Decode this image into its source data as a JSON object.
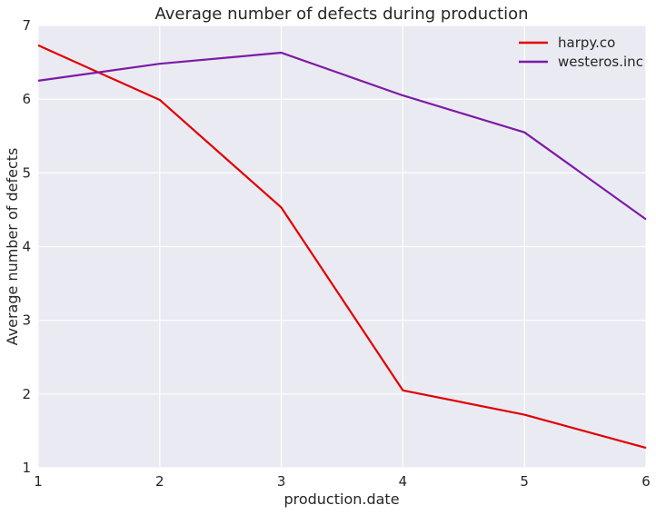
{
  "chart_data": {
    "type": "line",
    "title": "Average number of defects during production",
    "xlabel": "production.date",
    "ylabel": "Average number of defects",
    "x": [
      1,
      2,
      3,
      4,
      5,
      6
    ],
    "xlim": [
      1,
      6
    ],
    "ylim": [
      1,
      7
    ],
    "xticks": [
      1,
      2,
      3,
      4,
      5,
      6
    ],
    "yticks": [
      1,
      2,
      3,
      4,
      5,
      6,
      7
    ],
    "grid": true,
    "legend_position": "top-right",
    "plot_background": "#eaeaf2",
    "grid_color": "#ffffff",
    "series": [
      {
        "name": "harpy.co",
        "color": "#e00000",
        "values": [
          6.73,
          5.99,
          4.53,
          2.05,
          1.72,
          1.27
        ]
      },
      {
        "name": "westeros.inc",
        "color": "#7d1aa6",
        "values": [
          6.25,
          6.48,
          6.63,
          6.05,
          5.55,
          4.37
        ]
      }
    ]
  }
}
